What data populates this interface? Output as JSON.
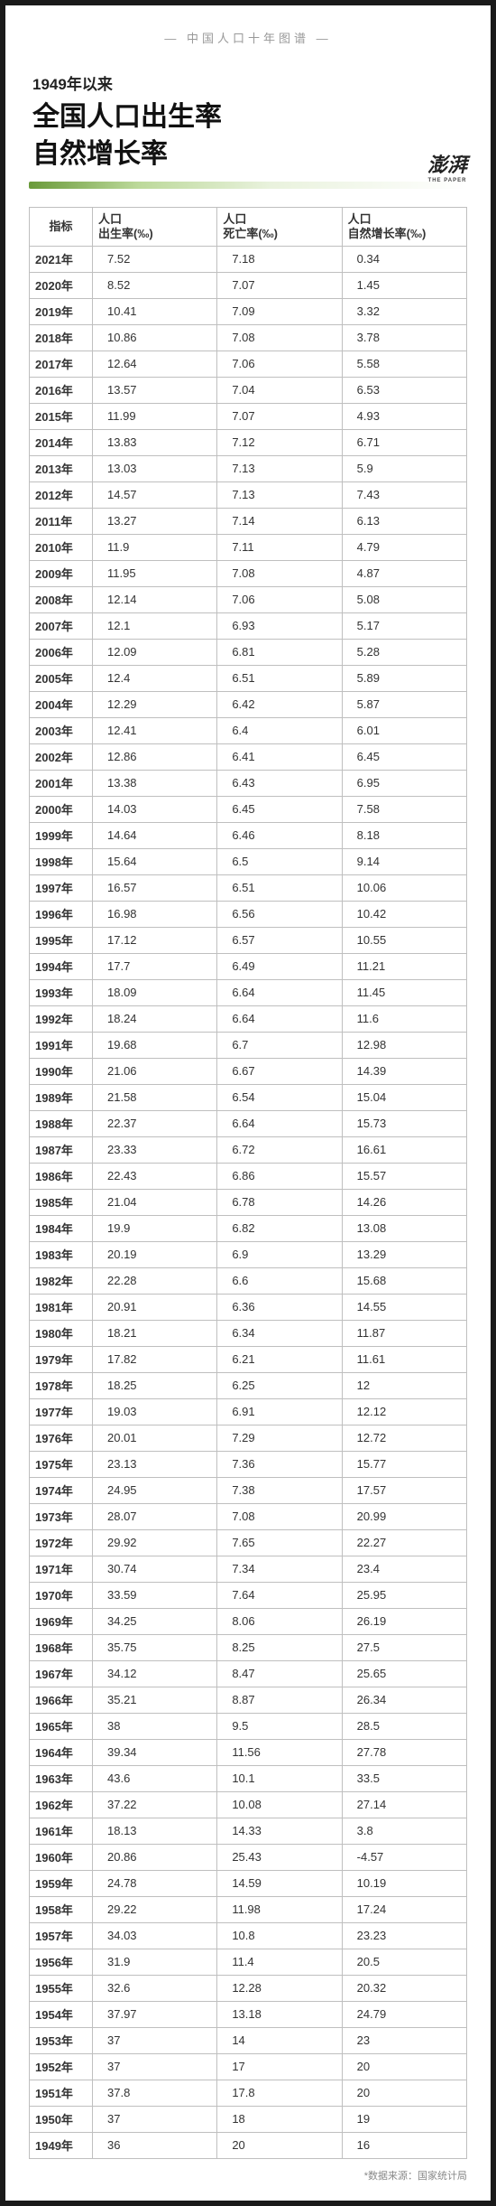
{
  "topBanner": "— 中国人口十年图谱 —",
  "subtitle": "1949年以来",
  "titleLine1": "全国人口出生率",
  "titleLine2": "自然增长率",
  "brand": "澎湃",
  "brandSub": "THE PAPER",
  "headers": {
    "col1": "指标",
    "col2a": "人口",
    "col2b": "出生率(‰)",
    "col3a": "人口",
    "col3b": "死亡率(‰)",
    "col4a": "人口",
    "col4b": "自然增长率(‰)"
  },
  "rows": [
    {
      "year": "2021年",
      "birth": "7.52",
      "death": "7.18",
      "natural": "0.34"
    },
    {
      "year": "2020年",
      "birth": "8.52",
      "death": "7.07",
      "natural": "1.45"
    },
    {
      "year": "2019年",
      "birth": "10.41",
      "death": "7.09",
      "natural": "3.32"
    },
    {
      "year": "2018年",
      "birth": "10.86",
      "death": "7.08",
      "natural": "3.78"
    },
    {
      "year": "2017年",
      "birth": "12.64",
      "death": "7.06",
      "natural": "5.58"
    },
    {
      "year": "2016年",
      "birth": "13.57",
      "death": "7.04",
      "natural": "6.53"
    },
    {
      "year": "2015年",
      "birth": "11.99",
      "death": "7.07",
      "natural": "4.93"
    },
    {
      "year": "2014年",
      "birth": "13.83",
      "death": "7.12",
      "natural": "6.71"
    },
    {
      "year": "2013年",
      "birth": "13.03",
      "death": "7.13",
      "natural": "5.9"
    },
    {
      "year": "2012年",
      "birth": "14.57",
      "death": "7.13",
      "natural": "7.43"
    },
    {
      "year": "2011年",
      "birth": "13.27",
      "death": "7.14",
      "natural": "6.13"
    },
    {
      "year": "2010年",
      "birth": "11.9",
      "death": "7.11",
      "natural": "4.79"
    },
    {
      "year": "2009年",
      "birth": "11.95",
      "death": "7.08",
      "natural": "4.87"
    },
    {
      "year": "2008年",
      "birth": "12.14",
      "death": "7.06",
      "natural": "5.08"
    },
    {
      "year": "2007年",
      "birth": "12.1",
      "death": "6.93",
      "natural": "5.17"
    },
    {
      "year": "2006年",
      "birth": "12.09",
      "death": "6.81",
      "natural": "5.28"
    },
    {
      "year": "2005年",
      "birth": "12.4",
      "death": "6.51",
      "natural": "5.89"
    },
    {
      "year": "2004年",
      "birth": "12.29",
      "death": "6.42",
      "natural": "5.87"
    },
    {
      "year": "2003年",
      "birth": "12.41",
      "death": "6.4",
      "natural": "6.01"
    },
    {
      "year": "2002年",
      "birth": "12.86",
      "death": "6.41",
      "natural": "6.45"
    },
    {
      "year": "2001年",
      "birth": "13.38",
      "death": "6.43",
      "natural": "6.95"
    },
    {
      "year": "2000年",
      "birth": "14.03",
      "death": "6.45",
      "natural": "7.58"
    },
    {
      "year": "1999年",
      "birth": "14.64",
      "death": "6.46",
      "natural": "8.18"
    },
    {
      "year": "1998年",
      "birth": "15.64",
      "death": "6.5",
      "natural": "9.14"
    },
    {
      "year": "1997年",
      "birth": "16.57",
      "death": "6.51",
      "natural": "10.06"
    },
    {
      "year": "1996年",
      "birth": "16.98",
      "death": "6.56",
      "natural": "10.42"
    },
    {
      "year": "1995年",
      "birth": "17.12",
      "death": "6.57",
      "natural": "10.55"
    },
    {
      "year": "1994年",
      "birth": "17.7",
      "death": "6.49",
      "natural": "11.21"
    },
    {
      "year": "1993年",
      "birth": "18.09",
      "death": "6.64",
      "natural": "11.45"
    },
    {
      "year": "1992年",
      "birth": "18.24",
      "death": "6.64",
      "natural": "11.6"
    },
    {
      "year": "1991年",
      "birth": "19.68",
      "death": "6.7",
      "natural": "12.98"
    },
    {
      "year": "1990年",
      "birth": "21.06",
      "death": "6.67",
      "natural": "14.39"
    },
    {
      "year": "1989年",
      "birth": "21.58",
      "death": "6.54",
      "natural": "15.04"
    },
    {
      "year": "1988年",
      "birth": "22.37",
      "death": "6.64",
      "natural": "15.73"
    },
    {
      "year": "1987年",
      "birth": "23.33",
      "death": "6.72",
      "natural": "16.61"
    },
    {
      "year": "1986年",
      "birth": "22.43",
      "death": "6.86",
      "natural": "15.57"
    },
    {
      "year": "1985年",
      "birth": "21.04",
      "death": "6.78",
      "natural": "14.26"
    },
    {
      "year": "1984年",
      "birth": "19.9",
      "death": "6.82",
      "natural": "13.08"
    },
    {
      "year": "1983年",
      "birth": "20.19",
      "death": "6.9",
      "natural": "13.29"
    },
    {
      "year": "1982年",
      "birth": "22.28",
      "death": "6.6",
      "natural": "15.68"
    },
    {
      "year": "1981年",
      "birth": "20.91",
      "death": "6.36",
      "natural": "14.55"
    },
    {
      "year": "1980年",
      "birth": "18.21",
      "death": "6.34",
      "natural": "11.87"
    },
    {
      "year": "1979年",
      "birth": "17.82",
      "death": "6.21",
      "natural": "11.61"
    },
    {
      "year": "1978年",
      "birth": "18.25",
      "death": "6.25",
      "natural": "12"
    },
    {
      "year": "1977年",
      "birth": "19.03",
      "death": "6.91",
      "natural": "12.12"
    },
    {
      "year": "1976年",
      "birth": "20.01",
      "death": "7.29",
      "natural": "12.72"
    },
    {
      "year": "1975年",
      "birth": "23.13",
      "death": "7.36",
      "natural": "15.77"
    },
    {
      "year": "1974年",
      "birth": "24.95",
      "death": "7.38",
      "natural": "17.57"
    },
    {
      "year": "1973年",
      "birth": "28.07",
      "death": "7.08",
      "natural": "20.99"
    },
    {
      "year": "1972年",
      "birth": "29.92",
      "death": "7.65",
      "natural": "22.27"
    },
    {
      "year": "1971年",
      "birth": "30.74",
      "death": "7.34",
      "natural": "23.4"
    },
    {
      "year": "1970年",
      "birth": "33.59",
      "death": "7.64",
      "natural": "25.95"
    },
    {
      "year": "1969年",
      "birth": "34.25",
      "death": "8.06",
      "natural": "26.19"
    },
    {
      "year": "1968年",
      "birth": "35.75",
      "death": "8.25",
      "natural": "27.5"
    },
    {
      "year": "1967年",
      "birth": "34.12",
      "death": "8.47",
      "natural": "25.65"
    },
    {
      "year": "1966年",
      "birth": "35.21",
      "death": "8.87",
      "natural": "26.34"
    },
    {
      "year": "1965年",
      "birth": "38",
      "death": "9.5",
      "natural": "28.5"
    },
    {
      "year": "1964年",
      "birth": "39.34",
      "death": "11.56",
      "natural": "27.78"
    },
    {
      "year": "1963年",
      "birth": "43.6",
      "death": "10.1",
      "natural": "33.5"
    },
    {
      "year": "1962年",
      "birth": "37.22",
      "death": "10.08",
      "natural": "27.14"
    },
    {
      "year": "1961年",
      "birth": "18.13",
      "death": "14.33",
      "natural": "3.8"
    },
    {
      "year": "1960年",
      "birth": "20.86",
      "death": "25.43",
      "natural": "-4.57"
    },
    {
      "year": "1959年",
      "birth": "24.78",
      "death": "14.59",
      "natural": "10.19"
    },
    {
      "year": "1958年",
      "birth": "29.22",
      "death": "11.98",
      "natural": "17.24"
    },
    {
      "year": "1957年",
      "birth": "34.03",
      "death": "10.8",
      "natural": "23.23"
    },
    {
      "year": "1956年",
      "birth": "31.9",
      "death": "11.4",
      "natural": "20.5"
    },
    {
      "year": "1955年",
      "birth": "32.6",
      "death": "12.28",
      "natural": "20.32"
    },
    {
      "year": "1954年",
      "birth": "37.97",
      "death": "13.18",
      "natural": "24.79"
    },
    {
      "year": "1953年",
      "birth": "37",
      "death": "14",
      "natural": "23"
    },
    {
      "year": "1952年",
      "birth": "37",
      "death": "17",
      "natural": "20"
    },
    {
      "year": "1951年",
      "birth": "37.8",
      "death": "17.8",
      "natural": "20"
    },
    {
      "year": "1950年",
      "birth": "37",
      "death": "18",
      "natural": "19"
    },
    {
      "year": "1949年",
      "birth": "36",
      "death": "20",
      "natural": "16"
    }
  ],
  "source": "*数据来源：国家统计局"
}
